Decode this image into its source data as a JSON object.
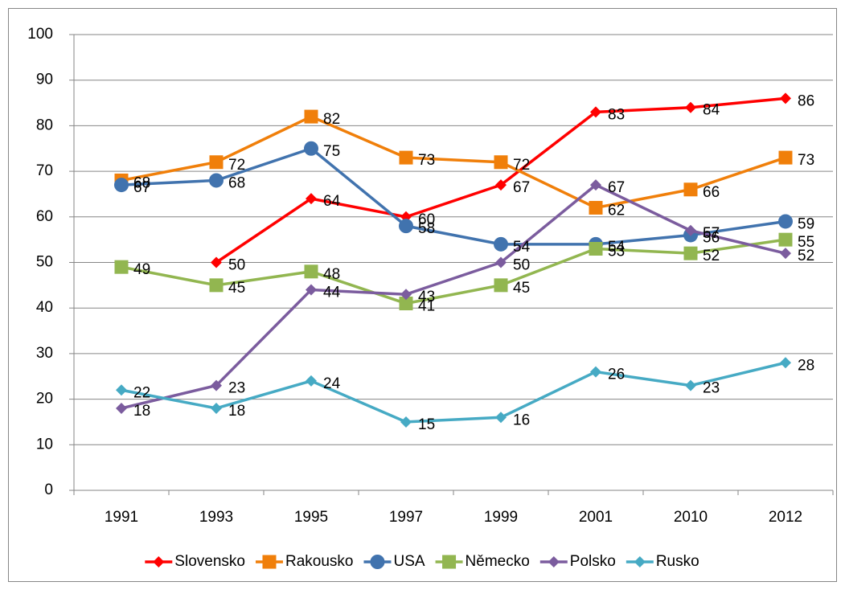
{
  "chart_data": {
    "type": "line",
    "categories": [
      "1991",
      "1993",
      "1995",
      "1997",
      "1999",
      "2001",
      "2010",
      "2012"
    ],
    "series": [
      {
        "name": "Slovensko",
        "color": "#ff0000",
        "marker": "diamond",
        "values": [
          null,
          50,
          64,
          60,
          67,
          83,
          84,
          86
        ]
      },
      {
        "name": "Rakousko",
        "color": "#f07f0a",
        "marker": "square",
        "values": [
          68,
          72,
          82,
          73,
          72,
          62,
          66,
          73
        ]
      },
      {
        "name": "USA",
        "color": "#4173ae",
        "marker": "circle",
        "values": [
          67,
          68,
          75,
          58,
          54,
          54,
          56,
          59
        ]
      },
      {
        "name": "Německo",
        "color": "#92b650",
        "marker": "square",
        "values": [
          49,
          45,
          48,
          41,
          45,
          53,
          52,
          55
        ]
      },
      {
        "name": "Polsko",
        "color": "#7b5c9e",
        "marker": "diamond",
        "values": [
          18,
          23,
          44,
          43,
          50,
          67,
          57,
          52
        ]
      },
      {
        "name": "Rusko",
        "color": "#46aac4",
        "marker": "diamond",
        "values": [
          22,
          18,
          24,
          15,
          16,
          26,
          23,
          28
        ]
      }
    ],
    "ylim": [
      0,
      100
    ],
    "yticks": [
      0,
      10,
      20,
      30,
      40,
      50,
      60,
      70,
      80,
      90,
      100
    ],
    "grid": true,
    "legend": "bottom"
  }
}
